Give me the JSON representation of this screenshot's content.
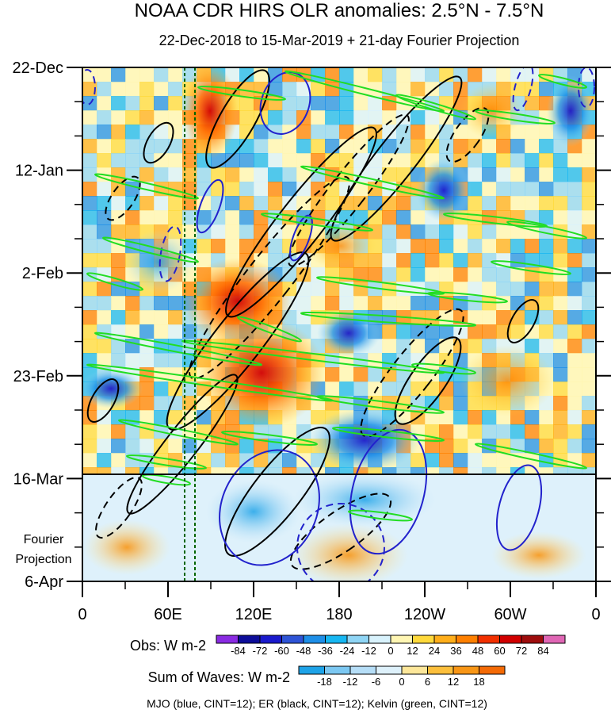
{
  "chart_data": {
    "type": "heatmap",
    "title": "NOAA CDR HIRS OLR anomalies: 2.5°N - 7.5°N",
    "subtitle": "22-Dec-2018 to 15-Mar-2019 + 21-day Fourier Projection",
    "x_axis": {
      "ticks": [
        "0",
        "60E",
        "120E",
        "180",
        "120W",
        "60W",
        "0"
      ],
      "tick_values_deg_east": [
        0,
        60,
        120,
        180,
        240,
        300,
        360
      ],
      "range": [
        0,
        360
      ]
    },
    "y_axis": {
      "ticks": [
        "22-Dec",
        "12-Jan",
        "2-Feb",
        "23-Feb",
        "16-Mar",
        "6-Apr"
      ],
      "tick_day_offsets": [
        0,
        21,
        42,
        63,
        84,
        105
      ],
      "range_days": [
        0,
        105
      ],
      "projection_label_lines": [
        "Fourier",
        "Projection"
      ],
      "projection_start_day": 84
    },
    "obs_colorbar": {
      "label": "Obs: W m-2",
      "levels": [
        -84,
        -72,
        -60,
        -48,
        -36,
        -24,
        -12,
        0,
        12,
        24,
        36,
        48,
        60,
        72,
        84
      ],
      "colors": [
        "#8a2be2",
        "#0d0d99",
        "#1a1acc",
        "#2e54d6",
        "#1e8fe8",
        "#17b7f2",
        "#8fd5f5",
        "#d8f2fc",
        "#fff6b3",
        "#ffd93b",
        "#ffae1a",
        "#ff8000",
        "#f23000",
        "#d10000",
        "#9e0d0d",
        "#e066b5"
      ]
    },
    "waves_colorbar": {
      "label": "Sum of Waves: W m-2",
      "levels": [
        -18,
        -12,
        -6,
        0,
        6,
        12,
        18
      ],
      "colors": [
        "#1ea3e8",
        "#7cc8f2",
        "#b6def7",
        "#def1fb",
        "#fde79a",
        "#fcbf3c",
        "#f89616",
        "#f46a05"
      ]
    },
    "overlays": [
      {
        "name": "MJO",
        "color": "blue",
        "cint": 12
      },
      {
        "name": "ER",
        "color": "black",
        "cint": 12
      },
      {
        "name": "Kelvin",
        "color": "green",
        "cint": 12
      }
    ],
    "footnote": "MJO (blue, CINT=12); ER (black, CINT=12); Kelvin (green, CINT=12)"
  },
  "colors": {
    "mjo": "#2222cc",
    "er": "#000000",
    "kelvin": "#22dd22",
    "reference_lines": "#006400"
  }
}
